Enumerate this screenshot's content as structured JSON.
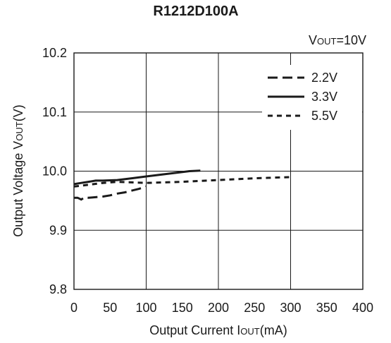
{
  "chart_data": {
    "type": "line",
    "title": "R1212D100A",
    "condition_label": "V",
    "condition_sub": "OUT",
    "condition_value": "=10V",
    "xlabel_main": "Output Current I",
    "xlabel_sub": "OUT",
    "xlabel_unit": "(mA)",
    "ylabel_main": "Output Voltage V",
    "ylabel_sub": "OUT",
    "ylabel_unit": "(V)",
    "xlim": [
      0,
      400
    ],
    "ylim": [
      9.8,
      10.2
    ],
    "x_ticks": [
      "0",
      "50",
      "100",
      "150",
      "200",
      "250",
      "300",
      "350",
      "400"
    ],
    "y_ticks": [
      "9.8",
      "9.9",
      "10.0",
      "10.1",
      "10.2"
    ],
    "grid": true,
    "legend_position": "top-right",
    "series": [
      {
        "name": "2.2V",
        "style": "long-dash",
        "x": [
          0,
          5,
          10,
          15,
          20,
          30,
          40,
          50,
          60,
          70,
          80,
          90,
          100
        ],
        "y": [
          9.955,
          9.955,
          9.952,
          9.956,
          9.955,
          9.956,
          9.957,
          9.959,
          9.962,
          9.964,
          9.967,
          9.97,
          9.974
        ]
      },
      {
        "name": "3.3V",
        "style": "solid",
        "x": [
          0,
          10,
          20,
          30,
          40,
          60,
          80,
          100,
          120,
          140,
          160,
          175
        ],
        "y": [
          9.978,
          9.98,
          9.982,
          9.984,
          9.984,
          9.985,
          9.988,
          9.991,
          9.994,
          9.997,
          10.0,
          10.001
        ]
      },
      {
        "name": "5.5V",
        "style": "short-dash",
        "x": [
          0,
          20,
          40,
          60,
          80,
          100,
          150,
          200,
          250,
          300
        ],
        "y": [
          9.974,
          9.977,
          9.98,
          9.982,
          9.981,
          9.98,
          9.982,
          9.985,
          9.988,
          9.99
        ]
      }
    ]
  }
}
